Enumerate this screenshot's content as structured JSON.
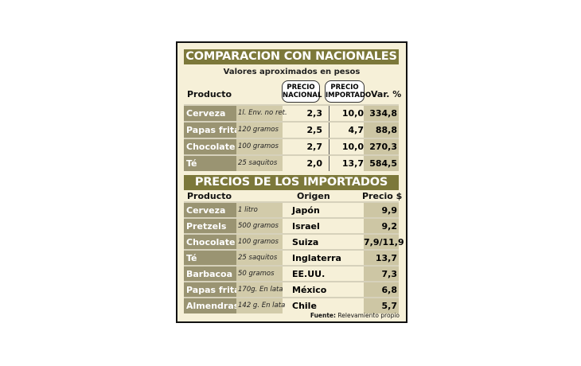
{
  "section1": {
    "title": "COMPARACION CON NACIONALES",
    "subtitle": "Valores aproximados en pesos",
    "headers": {
      "producto": "Producto",
      "nacional": "PRECIO NACIONAL",
      "importado": "PRECIO IMPORTADO",
      "var": "Var. %"
    },
    "rows": [
      {
        "producto": "Cerveza",
        "desc": "1l. Env. no ret.",
        "nacional": "2,3",
        "importado": "10,0",
        "var": "334,8"
      },
      {
        "producto": "Papas fritas",
        "desc": "120 gramos",
        "nacional": "2,5",
        "importado": "4,7",
        "var": "88,8"
      },
      {
        "producto": "Chocolate",
        "desc": "100 gramos",
        "nacional": "2,7",
        "importado": "10,0",
        "var": "270,3"
      },
      {
        "producto": "Té",
        "desc": "25 saquitos",
        "nacional": "2,0",
        "importado": "13,7",
        "var": "584,5"
      }
    ]
  },
  "section2": {
    "title": "PRECIOS DE LOS IMPORTADOS",
    "headers": {
      "producto": "Producto",
      "origen": "Origen",
      "precio": "Precio $"
    },
    "rows": [
      {
        "producto": "Cerveza",
        "desc": "1 litro",
        "origen": "Japón",
        "precio": "9,9"
      },
      {
        "producto": "Pretzels",
        "desc": "500 gramos",
        "origen": "Israel",
        "precio": "9,2"
      },
      {
        "producto": "Chocolate",
        "desc": "100 gramos",
        "origen": "Suiza",
        "precio": "7,9/11,9"
      },
      {
        "producto": "Té",
        "desc": "25 saquitos",
        "origen": "Inglaterra",
        "precio": "13,7"
      },
      {
        "producto": "Barbacoa",
        "desc": "50 gramos",
        "origen": "EE.UU.",
        "precio": "7,3"
      },
      {
        "producto": "Papas fritas",
        "desc": "170g. En lata",
        "origen": "México",
        "precio": "6,8"
      },
      {
        "producto": "Almendras",
        "desc": "142 g. En lata",
        "origen": "Chile",
        "precio": "5,7"
      }
    ]
  },
  "source": {
    "label": "Fuente:",
    "text": "Relevamiento propio"
  },
  "colors": {
    "title_bar": "#7c783a",
    "product_cell": "#9a9472",
    "desc_cell": "#d2cbaa",
    "background": "#f6f0d8"
  }
}
